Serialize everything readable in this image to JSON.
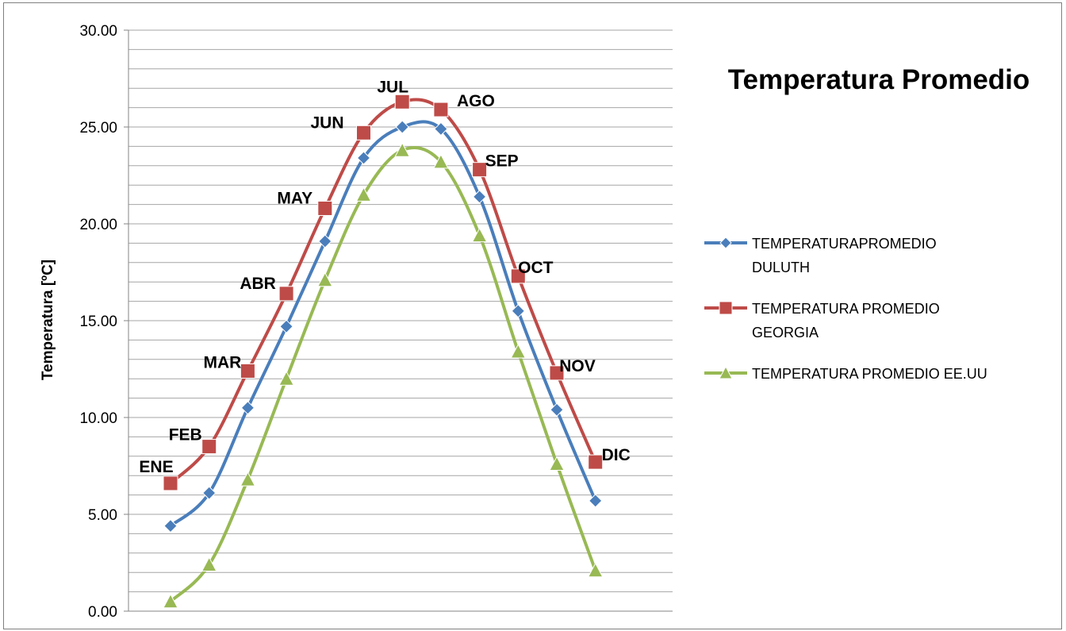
{
  "chart_data": {
    "type": "line",
    "title": "Temperatura Promedio",
    "xlabel": "",
    "ylabel": "Temperatura [ºC]",
    "ylim": [
      0,
      30
    ],
    "yticks": [
      "0.00",
      "5.00",
      "10.00",
      "15.00",
      "20.00",
      "25.00",
      "30.00"
    ],
    "grid": true,
    "legend_position": "right",
    "categories": [
      "ENE",
      "FEB",
      "MAR",
      "ABR",
      "MAY",
      "JUN",
      "JUL",
      "AGO",
      "SEP",
      "OCT",
      "NOV",
      "DIC"
    ],
    "series": [
      {
        "name": "TEMPERATURAPROMEDIO DULUTH",
        "legend_lines": [
          "TEMPERATURAPROMEDIO",
          "DULUTH"
        ],
        "color": "#4a7ebb",
        "marker": "diamond",
        "values": [
          4.4,
          6.1,
          10.5,
          14.7,
          19.1,
          23.4,
          25.0,
          24.9,
          21.4,
          15.5,
          10.4,
          5.7
        ]
      },
      {
        "name": "TEMPERATURA PROMEDIO GEORGIA",
        "legend_lines": [
          "TEMPERATURA PROMEDIO",
          "GEORGIA"
        ],
        "color": "#be4b48",
        "marker": "square",
        "values": [
          6.6,
          8.5,
          12.4,
          16.4,
          20.8,
          24.7,
          26.3,
          25.9,
          22.8,
          17.3,
          12.3,
          7.7
        ]
      },
      {
        "name": "TEMPERATURA PROMEDIO EE.UU",
        "legend_lines": [
          "TEMPERATURA PROMEDIO EE.UU"
        ],
        "color": "#98b954",
        "marker": "triangle",
        "values": [
          0.5,
          2.4,
          6.8,
          12.0,
          17.1,
          21.5,
          23.8,
          23.2,
          19.4,
          13.4,
          7.6,
          2.1
        ]
      }
    ],
    "data_labels_series": 1
  }
}
